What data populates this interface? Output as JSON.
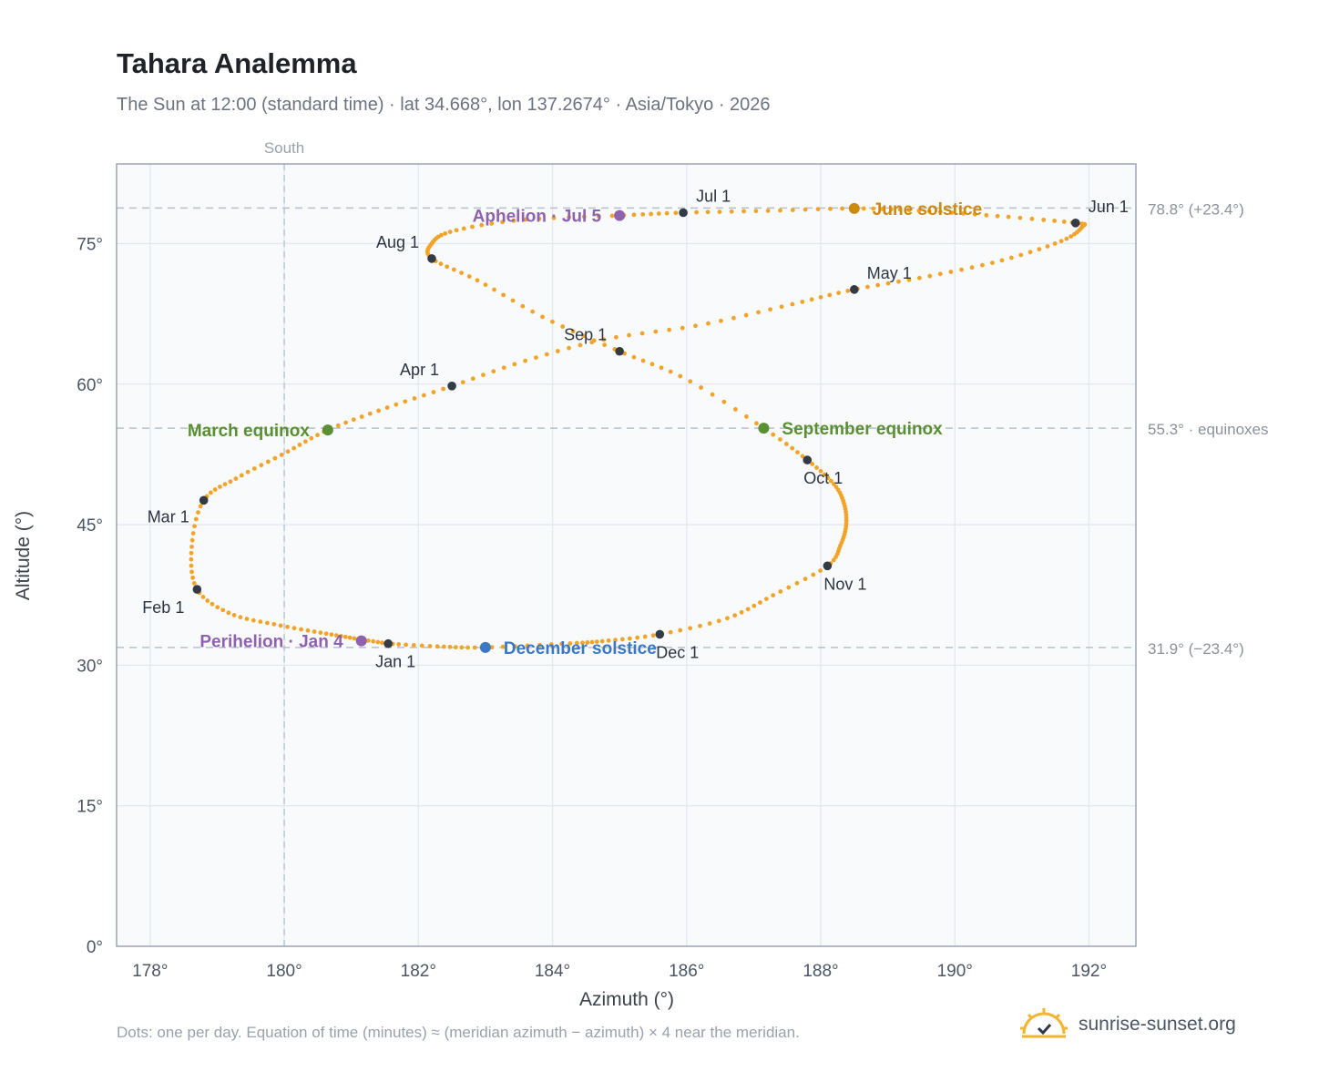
{
  "title": "Tahara Analemma",
  "subtitle": "The Sun at 12:00 (standard time) · lat 34.668°, lon 137.2674° · Asia/Tokyo · 2026",
  "footnote": "Dots: one per day. Equation of time (minutes) ≈ (meridian azimuth − azimuth) × 4 near the meridian.",
  "brand": {
    "name": "sunrise-sunset.org",
    "icon": "sun-logo-icon"
  },
  "colors": {
    "path": "#f2a42a",
    "month_marker": "#343a46",
    "equinox": "#5a8f33",
    "june_solstice": "#cc8a0f",
    "december_solstice": "#3a78c4",
    "apsis": "#8f62b0",
    "grid": "#e3e8ee",
    "frame": "#9aa6b4",
    "plot_bg": "#f8fafc",
    "reference_line": "#b6c0cb"
  },
  "chart_data": {
    "type": "scatter",
    "xlabel": "Azimuth (°)",
    "ylabel": "Altitude (°)",
    "xlim": [
      177.5,
      192.7
    ],
    "ylim": [
      0,
      83.5
    ],
    "xticks": [
      178,
      180,
      182,
      184,
      186,
      188,
      190,
      192
    ],
    "yticks": [
      0,
      15,
      30,
      45,
      60,
      75
    ],
    "tick_suffix": "°",
    "grid": true,
    "meridian": {
      "azimuth": 180,
      "label": "South"
    },
    "reference_lines": [
      {
        "altitude": 78.8,
        "label": "78.8° (+23.4°)"
      },
      {
        "altitude": 55.3,
        "label": "55.3° · equinoxes"
      },
      {
        "altitude": 31.9,
        "label": "31.9° (−23.4°)"
      }
    ],
    "series": [
      {
        "type": "daily_path",
        "description_key": "one dot per day at 12:00",
        "points": [
          [
            181.55,
            32.3
          ],
          [
            181.1,
            32.8
          ],
          [
            180.6,
            33.4
          ],
          [
            179.9,
            34.3
          ],
          [
            179.2,
            35.5
          ],
          [
            178.7,
            38.1
          ],
          [
            178.62,
            42.6
          ],
          [
            178.8,
            47.6
          ],
          [
            179.3,
            50.0
          ],
          [
            180.0,
            52.6
          ],
          [
            180.65,
            55.1
          ],
          [
            181.5,
            57.4
          ],
          [
            182.5,
            59.8
          ],
          [
            183.6,
            62.5
          ],
          [
            184.8,
            64.8
          ],
          [
            186.2,
            66.3
          ],
          [
            187.5,
            68.4
          ],
          [
            188.5,
            70.1
          ],
          [
            189.6,
            71.5
          ],
          [
            190.7,
            73.2
          ],
          [
            191.6,
            75.3
          ],
          [
            191.9,
            76.8
          ],
          [
            191.8,
            77.2
          ],
          [
            190.7,
            77.9
          ],
          [
            189.5,
            78.5
          ],
          [
            188.5,
            78.75
          ],
          [
            187.2,
            78.5
          ],
          [
            185.95,
            78.3
          ],
          [
            185.0,
            78.0
          ],
          [
            183.5,
            77.5
          ],
          [
            182.5,
            76.3
          ],
          [
            182.2,
            75.0
          ],
          [
            182.2,
            73.4
          ],
          [
            182.9,
            71.0
          ],
          [
            183.9,
            67.0
          ],
          [
            185.0,
            63.5
          ],
          [
            186.0,
            60.5
          ],
          [
            187.15,
            55.3
          ],
          [
            187.8,
            51.9
          ],
          [
            188.2,
            49.3
          ],
          [
            188.35,
            47.2
          ],
          [
            188.38,
            45.0
          ],
          [
            188.3,
            42.9
          ],
          [
            188.1,
            40.6
          ],
          [
            187.3,
            37.5
          ],
          [
            186.6,
            35.0
          ],
          [
            185.6,
            33.3
          ],
          [
            184.8,
            32.6
          ],
          [
            184.2,
            32.3
          ],
          [
            183.0,
            31.9
          ],
          [
            182.3,
            32.0
          ],
          [
            181.55,
            32.3
          ]
        ]
      }
    ],
    "month_markers": [
      {
        "label": "Jan 1",
        "azimuth": 181.55,
        "altitude": 32.3,
        "anchor": "below"
      },
      {
        "label": "Feb 1",
        "azimuth": 178.7,
        "altitude": 38.1,
        "anchor": "below-left"
      },
      {
        "label": "Mar 1",
        "azimuth": 178.8,
        "altitude": 47.6,
        "anchor": "left"
      },
      {
        "label": "Apr 1",
        "azimuth": 182.5,
        "altitude": 59.8,
        "anchor": "above-left"
      },
      {
        "label": "May 1",
        "azimuth": 188.5,
        "altitude": 70.1,
        "anchor": "above-right"
      },
      {
        "label": "Jun 1",
        "azimuth": 191.8,
        "altitude": 77.2,
        "anchor": "above-right"
      },
      {
        "label": "Jul 1",
        "azimuth": 185.95,
        "altitude": 78.3,
        "anchor": "above-right"
      },
      {
        "label": "Aug 1",
        "azimuth": 182.2,
        "altitude": 73.4,
        "anchor": "above-left"
      },
      {
        "label": "Sep 1",
        "azimuth": 185.0,
        "altitude": 63.5,
        "anchor": "above-left"
      },
      {
        "label": "Oct 1",
        "azimuth": 187.8,
        "altitude": 51.9,
        "anchor": "below-right"
      },
      {
        "label": "Nov 1",
        "azimuth": 188.1,
        "altitude": 40.6,
        "anchor": "below-right"
      },
      {
        "label": "Dec 1",
        "azimuth": 185.6,
        "altitude": 33.3,
        "anchor": "below-right"
      }
    ],
    "events": [
      {
        "label": "March equinox",
        "azimuth": 180.65,
        "altitude": 55.1,
        "color_key": "equinox",
        "anchor": "left"
      },
      {
        "label": "September equinox",
        "azimuth": 187.15,
        "altitude": 55.3,
        "color_key": "equinox",
        "anchor": "right"
      },
      {
        "label": "June solstice",
        "azimuth": 188.5,
        "altitude": 78.75,
        "color_key": "june_solstice",
        "anchor": "right"
      },
      {
        "label": "December solstice",
        "azimuth": 183.0,
        "altitude": 31.9,
        "color_key": "december_solstice",
        "anchor": "right"
      },
      {
        "label": "Aphelion · Jul 5",
        "azimuth": 185.0,
        "altitude": 78.0,
        "color_key": "apsis",
        "anchor": "left"
      },
      {
        "label": "Perihelion · Jan 4",
        "azimuth": 181.15,
        "altitude": 32.6,
        "color_key": "apsis",
        "anchor": "left"
      }
    ]
  }
}
